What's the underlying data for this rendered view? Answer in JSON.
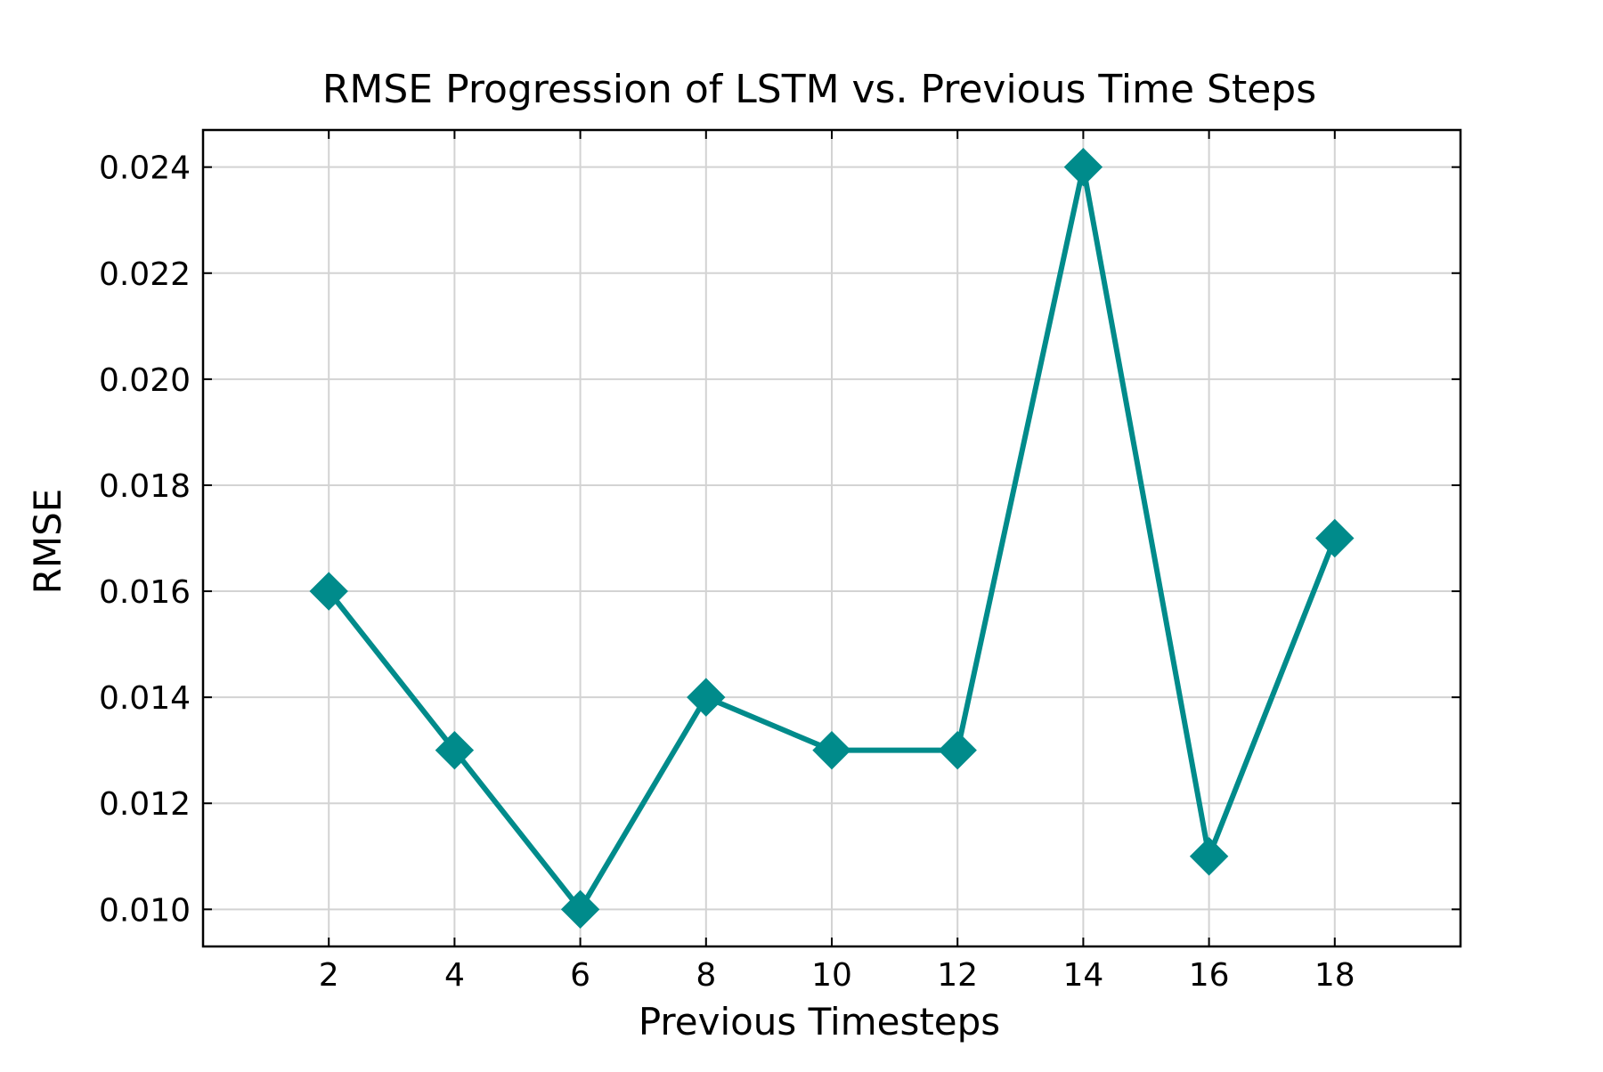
{
  "chart_data": {
    "type": "line",
    "title": "RMSE Progression of LSTM vs. Previous Time Steps",
    "xlabel": "Previous Timesteps",
    "ylabel": "RMSE",
    "x": [
      2,
      4,
      6,
      8,
      10,
      12,
      14,
      16,
      18
    ],
    "series": [
      {
        "values": [
          0.016,
          0.013,
          0.01,
          0.014,
          0.013,
          0.013,
          0.024,
          0.011,
          0.017
        ],
        "color": "#008b8b",
        "marker": "diamond"
      }
    ],
    "xticks": [
      2,
      4,
      6,
      8,
      10,
      12,
      14,
      16,
      18
    ],
    "xtick_labels": [
      "2",
      "4",
      "6",
      "8",
      "10",
      "12",
      "14",
      "16",
      "18"
    ],
    "yticks": [
      0.01,
      0.012,
      0.014,
      0.016,
      0.018,
      0.02,
      0.022,
      0.024
    ],
    "ytick_labels": [
      "0.010",
      "0.012",
      "0.014",
      "0.016",
      "0.018",
      "0.020",
      "0.022",
      "0.024"
    ],
    "xlim": [
      0,
      20
    ],
    "ylim": [
      0.0093,
      0.0247
    ],
    "grid": true,
    "grid_color": "#d3d3d3"
  }
}
